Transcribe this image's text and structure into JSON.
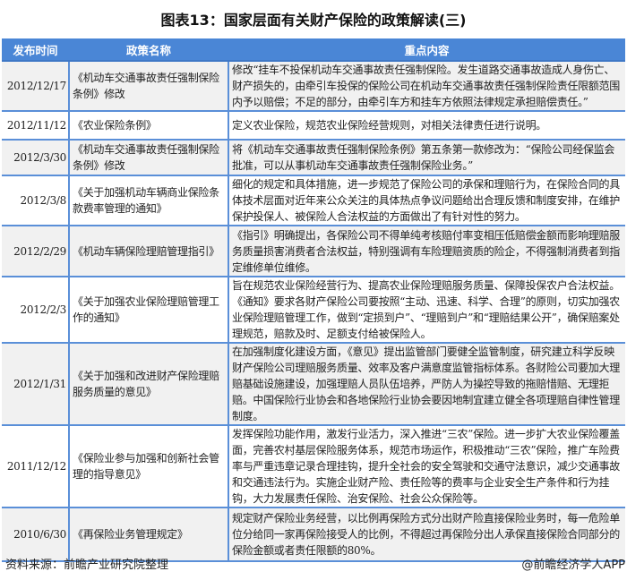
{
  "title": "图表13：国家层面有关财产保险的政策解读(三)",
  "table": {
    "headers": [
      "发布时间",
      "政策名称",
      "重点内容"
    ],
    "rows": [
      {
        "date": "2012/12/17",
        "name": "《机动车交通事故责任强制保险条例》修改",
        "content": "修改“挂车不投保机动车交通事故责任强制保险。发生道路交通事故造成人身伤亡、财产损失的，由牵引车投保的保险公司在机动车交通事故责任强制保险责任限额范围内予以赔偿；不足的部分，由牵引车方和挂车方依照法律规定承担赔偿责任。”"
      },
      {
        "date": "2012/11/12",
        "name": "《农业保险条例》",
        "content": "定义农业保险，规范农业保险经营规则，对相关法律责任进行说明。"
      },
      {
        "date": "2012/3/30",
        "name": "《机动车交通事故责任强制保险条例》修改",
        "content": "将《机动车交通事故责任强制保险条例》第五条第一款修改为：“保险公司经保监会批准，可以从事机动车交通事故责任强制保险业务。”"
      },
      {
        "date": "2012/3/8",
        "name": "《关于加强机动车辆商业保险条款费率管理的通知》",
        "content": "细化的规定和具体措施，进一步规范了保险公司的承保和理赔行为，在保险合同的具体技术层面对近年来公众关注的具体热点争议问题给出合理反馈和制度安排，在维护保护投保人、被保险人合法权益的方面做出了有针对性的努力。"
      },
      {
        "date": "2012/2/29",
        "name": "《机动车辆保险理赔管理指引》",
        "content": "《指引》明确提出，各保险公司不得单纯考核赔付率变相压低赔偿金额而影响理赔服务质量损害消费者合法权益，特别强调有车险理赔资质的险企，不得强制消费者到指定维修单位维修。"
      },
      {
        "date": "2012/2/3",
        "name": "《关于加强农业保险理赔管理工作的通知》",
        "content": "旨在规范农业保险经营行为、提高农业保险理赔服务质量、保障投保农户合法权益。《通知》要求各财产保险公司要按照“主动、迅速、科学、合理”的原则，切实加强农业保险理赔管理工作，做到“定损到户”、“理赔到户”和“理赔结果公开”，确保赔案处理规范，赔款及时、足额支付给被保险人。"
      },
      {
        "date": "2012/1/31",
        "name": "《关于加强和改进财产保险理赔服务质量的意见》",
        "content": "在加强制度化建设方面，《意见》提出监管部门要健全监管制度，研究建立科学反映财产保险公司理赔服务质量、效率及客户满意度监管指标体系。各财险公司要加大理赔基础设施建设，加强理赔人员队伍培养，严防人为操控导致的拖赔惜赔、无理拒赔。中国保险行业协会和各地保险行业协会要因地制宜建立健全各项理赔自律性管理制度。"
      },
      {
        "date": "2011/12/12",
        "name": "《保险业参与加强和创新社会管理的指导意见》",
        "content": "发挥保险功能作用，激发行业活力，深入推进“三农”保险。进一步扩大农业保险覆盖面，完善农村基层保险服务体系，规范市场运作，积极推动“三农”保险，推广车险费率与严重违章记录合理挂钩，提升全社会的安全驾驶和交通守法意识，减少交通事故和交通违法行为。实施企业财产险、责任险等的费率与企业安全生产条件和行为挂钩，大力发展责任保险、治安保险、社会公众保险等。"
      },
      {
        "date": "2010/6/30",
        "name": "《再保险业务管理规定》",
        "content": "规定财产保险业务经营，以比例再保险方式分出财产险直接保险业务时，每一危险单位分给同一家再保险接受人的比例，不得超过再保险分出人承保直接保险合同部分的保险金额或者责任限额的80%。"
      }
    ]
  },
  "footer": {
    "source": "资料来源：前瞻产业研究院整理",
    "credit": "@前瞻经济学人APP"
  }
}
